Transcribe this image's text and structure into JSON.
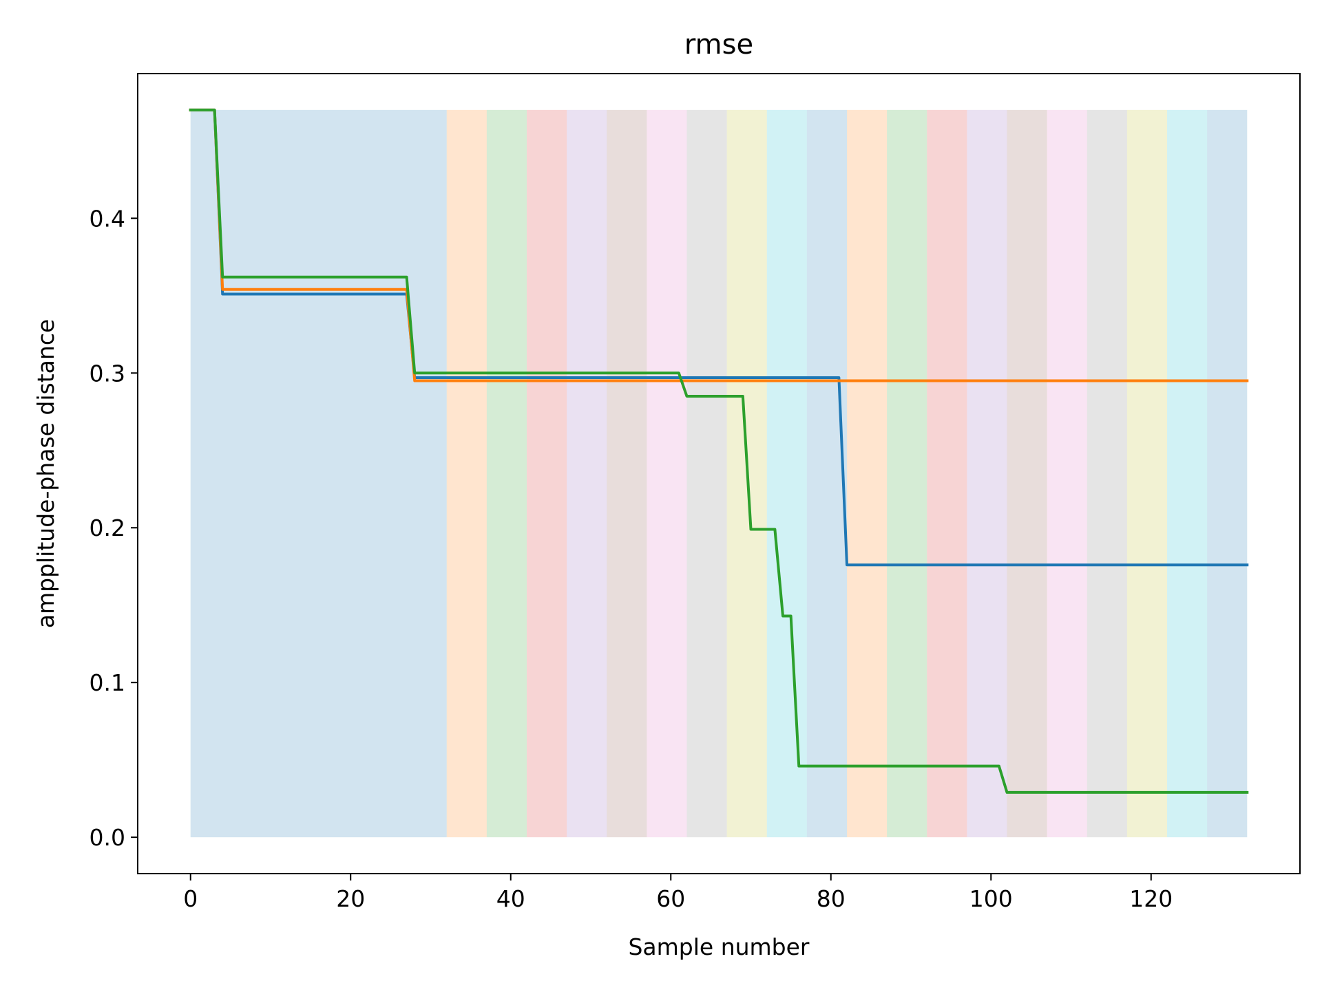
{
  "chart_data": {
    "type": "line",
    "title": "rmse",
    "xlabel": "Sample number",
    "ylabel": "ampplitude-phase distance",
    "xlim": [
      -6.6,
      138.6
    ],
    "ylim": [
      -0.0235,
      0.4935
    ],
    "xticks": [
      0,
      20,
      40,
      60,
      80,
      100,
      120
    ],
    "yticks": [
      0.0,
      0.1,
      0.2,
      0.3,
      0.4
    ],
    "ytick_labels": [
      "0.0",
      "0.1",
      "0.2",
      "0.3",
      "0.4"
    ],
    "grid": false,
    "legend": null,
    "background_bands": {
      "y_range": [
        0,
        0.47
      ],
      "colors": [
        "#1f77b4",
        "#ff7f0e",
        "#2ca02c",
        "#d62728",
        "#9467bd",
        "#8c564b",
        "#e377c2",
        "#7f7f7f",
        "#bcbd22",
        "#17becf"
      ],
      "alpha": 0.2,
      "segments": [
        [
          0,
          32
        ],
        [
          32,
          37
        ],
        [
          37,
          42
        ],
        [
          42,
          47
        ],
        [
          47,
          52
        ],
        [
          52,
          57
        ],
        [
          57,
          62
        ],
        [
          62,
          67
        ],
        [
          67,
          72
        ],
        [
          72,
          77
        ],
        [
          77,
          82
        ],
        [
          82,
          87
        ],
        [
          87,
          92
        ],
        [
          92,
          97
        ],
        [
          97,
          102
        ],
        [
          102,
          107
        ],
        [
          107,
          112
        ],
        [
          112,
          117
        ],
        [
          117,
          122
        ],
        [
          122,
          127
        ],
        [
          127,
          132
        ]
      ]
    },
    "series": [
      {
        "color": "#1f77b4",
        "points": [
          [
            0,
            0.47
          ],
          [
            3,
            0.47
          ],
          [
            4,
            0.351
          ],
          [
            27,
            0.351
          ],
          [
            28,
            0.297
          ],
          [
            81,
            0.297
          ],
          [
            82,
            0.176
          ],
          [
            132,
            0.176
          ]
        ]
      },
      {
        "color": "#ff7f0e",
        "points": [
          [
            0,
            0.47
          ],
          [
            3,
            0.47
          ],
          [
            4,
            0.354
          ],
          [
            27,
            0.354
          ],
          [
            28,
            0.295
          ],
          [
            132,
            0.295
          ]
        ]
      },
      {
        "color": "#2ca02c",
        "points": [
          [
            0,
            0.47
          ],
          [
            3,
            0.47
          ],
          [
            4,
            0.362
          ],
          [
            27,
            0.362
          ],
          [
            28,
            0.3
          ],
          [
            61,
            0.3
          ],
          [
            62,
            0.285
          ],
          [
            69,
            0.285
          ],
          [
            70,
            0.199
          ],
          [
            73,
            0.199
          ],
          [
            74,
            0.143
          ],
          [
            75,
            0.143
          ],
          [
            76,
            0.046
          ],
          [
            101,
            0.046
          ],
          [
            102,
            0.029
          ],
          [
            132,
            0.029
          ]
        ]
      }
    ]
  }
}
